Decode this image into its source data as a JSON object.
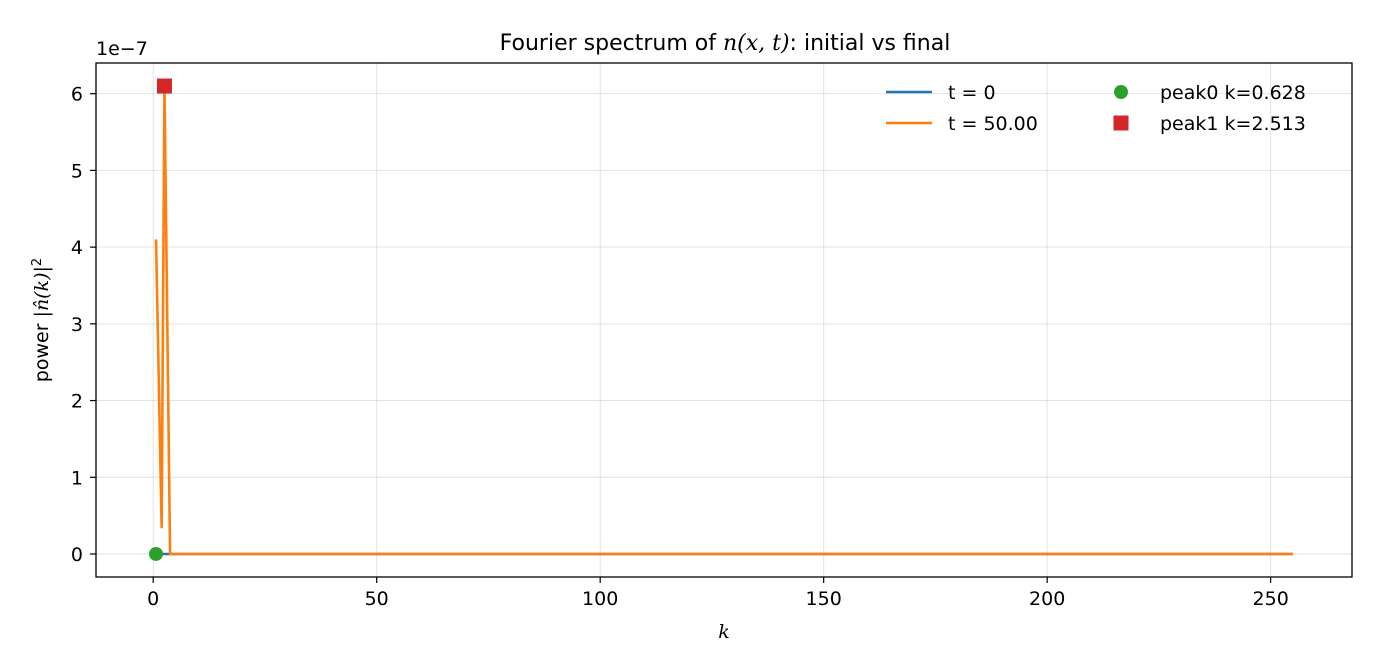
{
  "chart_data": {
    "type": "line",
    "title": "Fourier spectrum of n(x, t): initial vs final",
    "title_parts": {
      "pre": "Fourier spectrum of ",
      "math": "n(x, t)",
      "post": ": initial vs final"
    },
    "xlabel": "k",
    "ylabel": "power |n̂(k)|²",
    "ylabel_parts": {
      "pre": "power ",
      "math": "|n̂(k)|",
      "sup": "2"
    },
    "y_offset_text": "1e−7",
    "xlim": [
      -12.8,
      268.2
    ],
    "ylim": [
      -0.3,
      6.4
    ],
    "xticks": [
      0,
      50,
      100,
      150,
      200,
      250
    ],
    "xtick_labels": [
      "0",
      "50",
      "100",
      "150",
      "200",
      "250"
    ],
    "yticks": [
      0,
      1,
      2,
      3,
      4,
      5,
      6
    ],
    "ytick_labels": [
      "0",
      "1",
      "2",
      "3",
      "4",
      "5",
      "6"
    ],
    "grid": true,
    "legend_position": "top-right",
    "series": [
      {
        "name": "t = 0",
        "color": "#1f77b4",
        "x": [
          0.628,
          255.0
        ],
        "y": [
          0,
          0
        ]
      },
      {
        "name": "t = 50.00",
        "color": "#ff7f0e",
        "x": [
          0.628,
          1.885,
          2.513,
          3.77,
          255.0
        ],
        "y": [
          4.1,
          0.35,
          6.1,
          0.0,
          0.0
        ]
      }
    ],
    "markers": [
      {
        "name": "peak0 k=0.628",
        "shape": "circle",
        "color": "#2ca02c",
        "x": 0.628,
        "y": 0.0
      },
      {
        "name": "peak1 k=2.513",
        "shape": "square",
        "color": "#d62728",
        "x": 2.513,
        "y": 6.1
      }
    ]
  }
}
